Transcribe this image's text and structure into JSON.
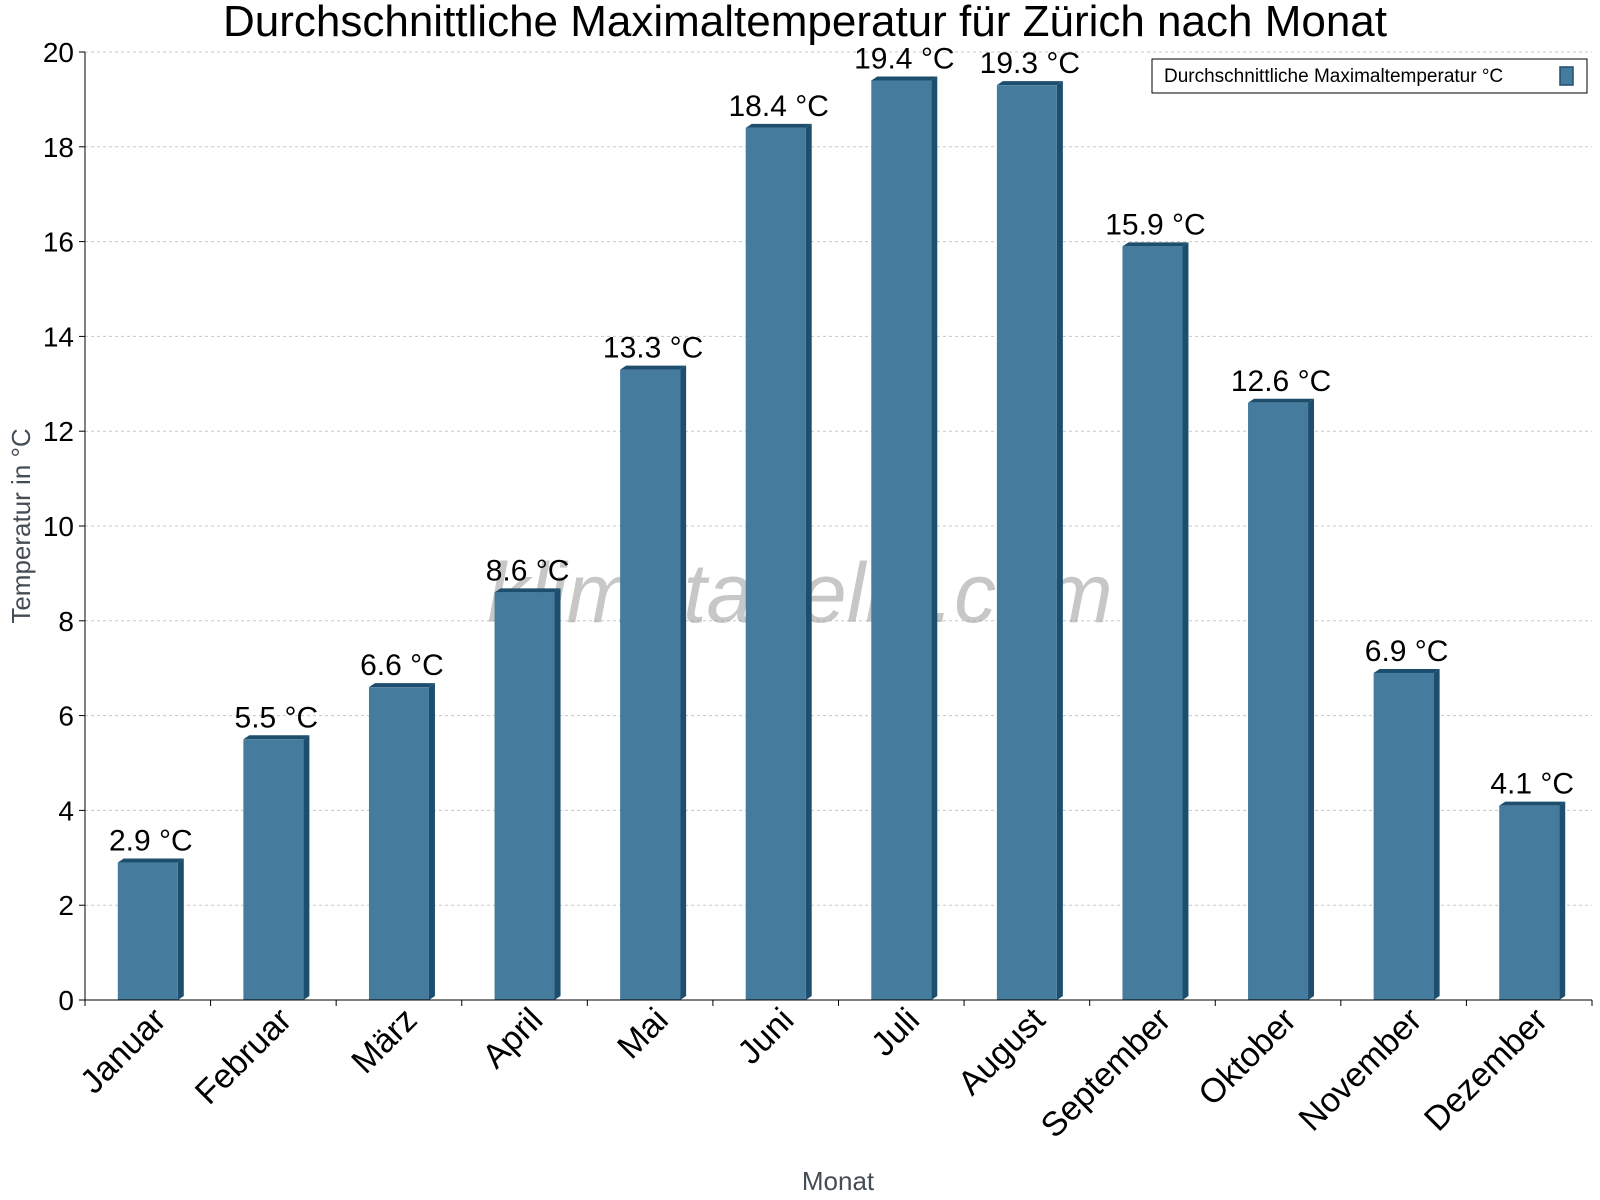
{
  "chart_data": {
    "type": "bar",
    "title": "Durchschnittliche Maximaltemperatur für Zürich nach Monat",
    "xlabel": "Monat",
    "ylabel": "Temperatur in °C",
    "categories": [
      "Januar",
      "Februar",
      "März",
      "April",
      "Mai",
      "Juni",
      "Juli",
      "August",
      "September",
      "Oktober",
      "November",
      "Dezember"
    ],
    "series": [
      {
        "name": "Durchschnittliche Maximaltemperatur °C",
        "values": [
          2.9,
          5.5,
          6.6,
          8.6,
          13.3,
          18.4,
          19.4,
          19.3,
          15.9,
          12.6,
          6.9,
          4.1
        ],
        "color": "#457b9d",
        "edge_color": "#1d4e6e"
      }
    ],
    "value_labels": [
      "2.9 °C",
      "5.5 °C",
      "6.6 °C",
      "8.6 °C",
      "13.3 °C",
      "18.4 °C",
      "19.4 °C",
      "19.3 °C",
      "15.9 °C",
      "12.6 °C",
      "6.9 °C",
      "4.1 °C"
    ],
    "ylim": [
      0,
      20
    ],
    "yticks": [
      0,
      2,
      4,
      6,
      8,
      10,
      12,
      14,
      16,
      18,
      20
    ],
    "grid": true,
    "legend_position": "top-right",
    "watermark": "klimatabelle.com"
  }
}
